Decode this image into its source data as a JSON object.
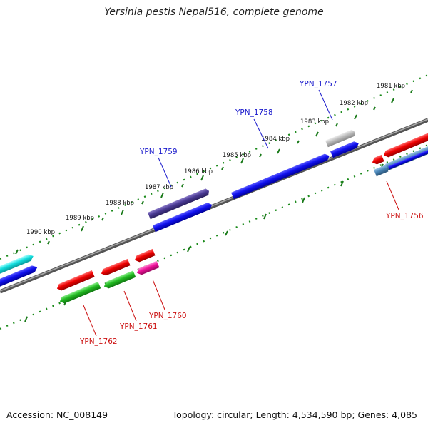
{
  "title": "Yersinia pestis Nepal516, complete genome",
  "footer": {
    "accession": "Accession: NC_008149",
    "summary": "Topology: circular; Length: 4,534,590 bp; Genes: 4,085"
  },
  "colors": {
    "backbone": "#777777",
    "ruler_dots": "#1a8a1a",
    "label_blue": "#1a1acc",
    "label_red": "#cc1111"
  },
  "scale_labels": [
    "1981 kbp",
    "1982 kbp",
    "1983 kbp",
    "1984 kbp",
    "1985 kbp",
    "1986 kbp",
    "1987 kbp",
    "1988 kbp",
    "1989 kbp",
    "1990 kbp"
  ],
  "gene_labels": {
    "top": [
      "YPN_1757",
      "YPN_1758",
      "YPN_1759"
    ],
    "bottom": [
      "YPN_1756",
      "YPN_1760",
      "YPN_1761",
      "YPN_1762"
    ]
  }
}
